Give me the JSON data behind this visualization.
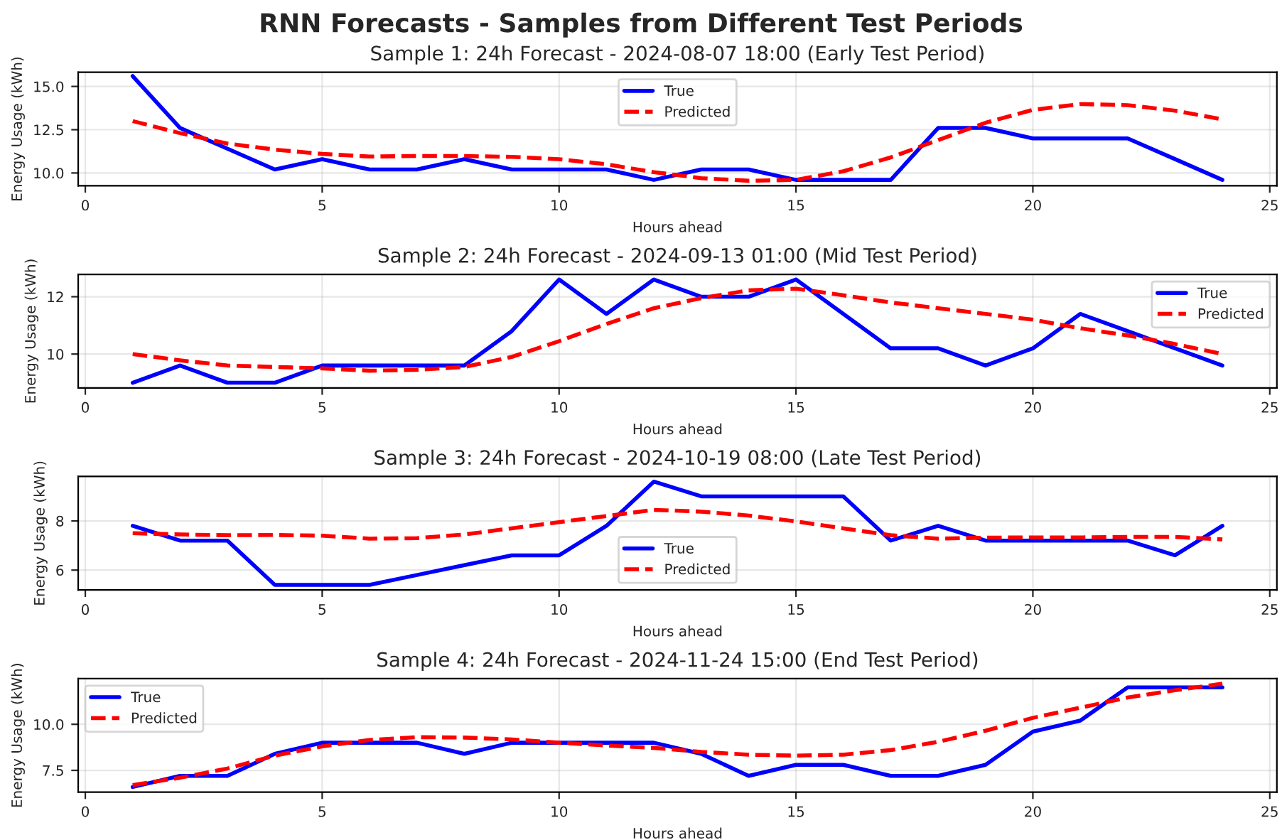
{
  "chart_data": [
    {
      "type": "line",
      "annotations": [
        "RNN Forecasts - Samples from Different Test Periods"
      ],
      "title": "Sample 1: 24h Forecast - 2024-08-07 18:00 (Early Test Period)",
      "xlabel": "Hours ahead",
      "ylabel": "Energy Usage (kWh)",
      "x": [
        1,
        2,
        3,
        4,
        5,
        6,
        7,
        8,
        9,
        10,
        11,
        12,
        13,
        14,
        15,
        16,
        17,
        18,
        19,
        20,
        21,
        22,
        23,
        24
      ],
      "xlim": [
        -0.15,
        25.15
      ],
      "xticks": [
        0,
        5,
        10,
        15,
        20,
        25
      ],
      "ylim": [
        9.26,
        15.82
      ],
      "yticks": [
        {
          "value": 10,
          "label": "10.0"
        },
        {
          "value": 12.5,
          "label": "12.5"
        },
        {
          "value": 15,
          "label": "15.0"
        }
      ],
      "grid": true,
      "legend": "top",
      "series": [
        {
          "name": "True",
          "color": "#0000ff",
          "line_style": "solid",
          "values": [
            15.6,
            12.6,
            11.4,
            10.2,
            10.8,
            10.2,
            10.2,
            10.8,
            10.2,
            10.2,
            10.2,
            9.6,
            10.2,
            10.2,
            9.6,
            9.6,
            9.6,
            12.6,
            12.6,
            12.0,
            12.0,
            12.0,
            10.8,
            9.6
          ]
        },
        {
          "name": "Predicted",
          "color": "#ff0000",
          "line_style": "dashed",
          "values": [
            13.0,
            12.3,
            11.7,
            11.35,
            11.1,
            10.95,
            10.98,
            10.98,
            10.93,
            10.8,
            10.5,
            10.05,
            9.7,
            9.55,
            9.6,
            10.1,
            10.9,
            11.9,
            12.9,
            13.65,
            13.98,
            13.92,
            13.6,
            13.1
          ]
        }
      ]
    },
    {
      "type": "line",
      "title": "Sample 2: 24h Forecast - 2024-09-13 01:00 (Mid Test Period)",
      "xlabel": "Hours ahead",
      "ylabel": "Energy Usage (kWh)",
      "x": [
        1,
        2,
        3,
        4,
        5,
        6,
        7,
        8,
        9,
        10,
        11,
        12,
        13,
        14,
        15,
        16,
        17,
        18,
        19,
        20,
        21,
        22,
        23,
        24
      ],
      "xlim": [
        -0.15,
        25.15
      ],
      "xticks": [
        0,
        5,
        10,
        15,
        20,
        25
      ],
      "ylim": [
        8.82,
        12.78
      ],
      "yticks": [
        10,
        12
      ],
      "grid": true,
      "legend": "top right",
      "series": [
        {
          "name": "True",
          "color": "#0000ff",
          "line_style": "solid",
          "values": [
            9.0,
            9.6,
            9.0,
            9.0,
            9.6,
            9.6,
            9.6,
            9.6,
            10.8,
            12.6,
            11.4,
            12.6,
            12.0,
            12.0,
            12.6,
            11.4,
            10.2,
            10.2,
            9.6,
            10.2,
            11.4,
            10.8,
            10.2,
            9.6
          ]
        },
        {
          "name": "Predicted",
          "color": "#ff0000",
          "line_style": "dashed",
          "values": [
            10.0,
            9.78,
            9.6,
            9.55,
            9.5,
            9.42,
            9.45,
            9.55,
            9.9,
            10.45,
            11.05,
            11.6,
            11.95,
            12.22,
            12.28,
            12.05,
            11.8,
            11.6,
            11.4,
            11.2,
            10.9,
            10.65,
            10.35,
            10.0
          ]
        }
      ]
    },
    {
      "type": "line",
      "title": "Sample 3: 24h Forecast - 2024-10-19 08:00 (Late Test Period)",
      "xlabel": "Hours ahead",
      "ylabel": "Energy Usage (kWh)",
      "x": [
        1,
        2,
        3,
        4,
        5,
        6,
        7,
        8,
        9,
        10,
        11,
        12,
        13,
        14,
        15,
        16,
        17,
        18,
        19,
        20,
        21,
        22,
        23,
        24
      ],
      "xlim": [
        -0.15,
        25.15
      ],
      "xticks": [
        0,
        5,
        10,
        15,
        20,
        25
      ],
      "ylim": [
        5.19,
        9.81
      ],
      "yticks": [
        6,
        8
      ],
      "grid": true,
      "legend": "bottom",
      "series": [
        {
          "name": "True",
          "color": "#0000ff",
          "line_style": "solid",
          "values": [
            7.8,
            7.2,
            7.2,
            5.4,
            5.4,
            5.4,
            5.8,
            6.2,
            6.6,
            6.6,
            7.8,
            9.6,
            9.0,
            9.0,
            9.0,
            9.0,
            7.2,
            7.8,
            7.2,
            7.2,
            7.2,
            7.2,
            6.6,
            7.8
          ]
        },
        {
          "name": "Predicted",
          "color": "#ff0000",
          "line_style": "dashed",
          "values": [
            7.5,
            7.45,
            7.42,
            7.43,
            7.4,
            7.28,
            7.3,
            7.45,
            7.7,
            7.95,
            8.2,
            8.45,
            8.38,
            8.22,
            7.98,
            7.7,
            7.42,
            7.28,
            7.32,
            7.33,
            7.33,
            7.35,
            7.35,
            7.25
          ]
        }
      ]
    },
    {
      "type": "line",
      "title": "Sample 4: 24h Forecast - 2024-11-24 15:00 (End Test Period)",
      "xlabel": "Hours ahead",
      "ylabel": "Energy Usage (kWh)",
      "x": [
        1,
        2,
        3,
        4,
        5,
        6,
        7,
        8,
        9,
        10,
        11,
        12,
        13,
        14,
        15,
        16,
        17,
        18,
        19,
        20,
        21,
        22,
        23,
        24
      ],
      "xlim": [
        -0.15,
        25.15
      ],
      "xticks": [
        0,
        5,
        10,
        15,
        20,
        25
      ],
      "ylim": [
        6.32,
        12.48
      ],
      "yticks": [
        {
          "value": 7.5,
          "label": "7.5"
        },
        {
          "value": 10,
          "label": "10.0"
        }
      ],
      "grid": true,
      "legend": "top left",
      "series": [
        {
          "name": "True",
          "color": "#0000ff",
          "line_style": "solid",
          "values": [
            6.6,
            7.2,
            7.2,
            8.4,
            9.0,
            9.0,
            9.0,
            8.4,
            9.0,
            9.0,
            9.0,
            9.0,
            8.4,
            7.2,
            7.8,
            7.8,
            7.2,
            7.2,
            7.8,
            9.6,
            10.2,
            12.0,
            12.0,
            12.0
          ]
        },
        {
          "name": "Predicted",
          "color": "#ff0000",
          "line_style": "dashed",
          "values": [
            6.7,
            7.1,
            7.6,
            8.3,
            8.8,
            9.15,
            9.3,
            9.28,
            9.18,
            9.0,
            8.85,
            8.72,
            8.5,
            8.35,
            8.3,
            8.35,
            8.6,
            9.05,
            9.65,
            10.35,
            10.9,
            11.45,
            11.85,
            12.2
          ]
        }
      ]
    }
  ]
}
